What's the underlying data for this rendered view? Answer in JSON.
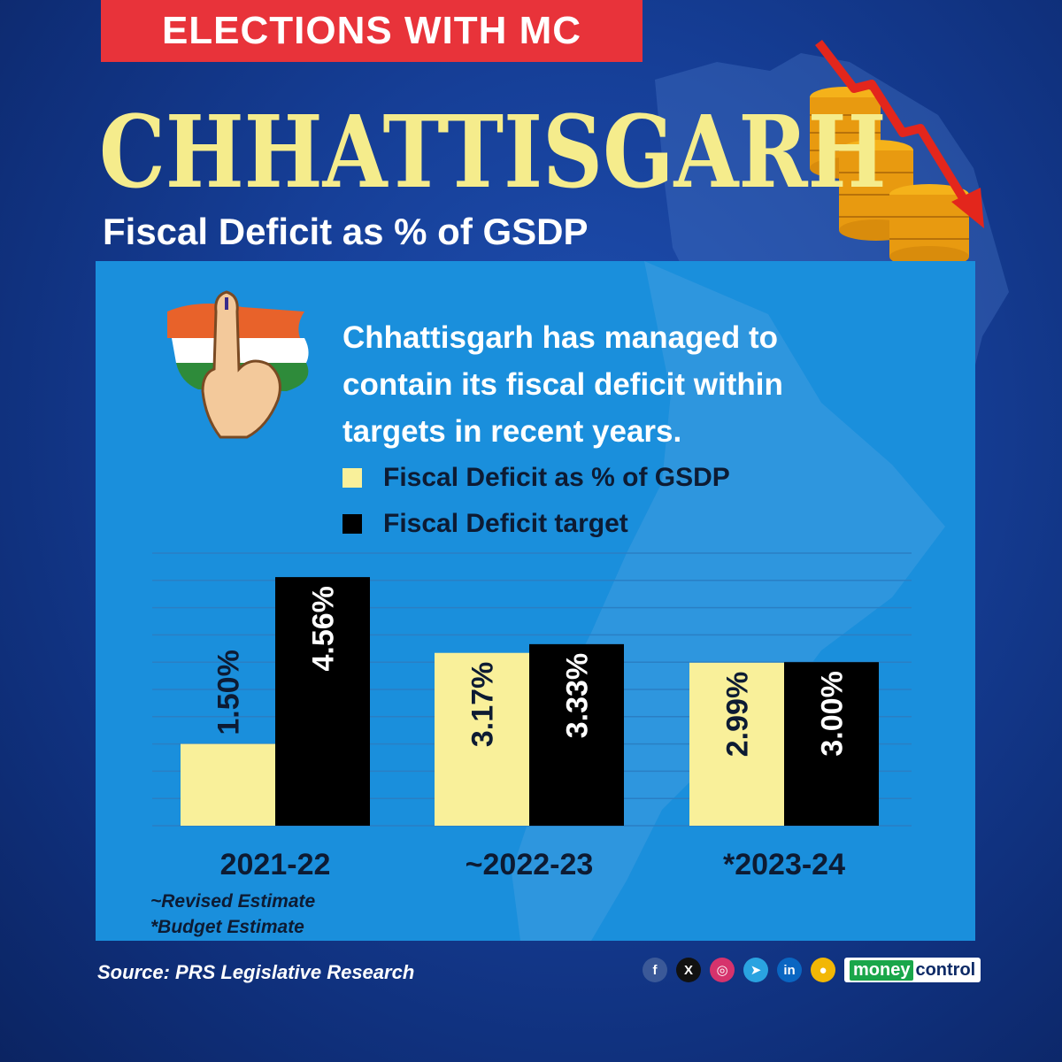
{
  "header": {
    "tag": "ELECTIONS WITH MC",
    "state": "CHHATTISGARH",
    "subtitle": "Fiscal Deficit as % of GSDP"
  },
  "note": "Chhattisgarh has managed to contain its fiscal deficit within targets in recent years.",
  "legend": [
    {
      "label": "Fiscal Deficit as % of GSDP",
      "color": "#f9f09a"
    },
    {
      "label": "Fiscal Deficit target",
      "color": "#000000"
    }
  ],
  "chart_data": {
    "type": "bar",
    "categories": [
      "2021-22",
      "~2022-23",
      "*2023-24"
    ],
    "series": [
      {
        "name": "Fiscal Deficit as % of GSDP",
        "values": [
          1.5,
          3.17,
          2.99
        ],
        "labels": [
          "1.50%",
          "3.17%",
          "2.99%"
        ],
        "color": "#f9f09a"
      },
      {
        "name": "Fiscal Deficit target",
        "values": [
          4.56,
          3.33,
          3.0
        ],
        "labels": [
          "4.56%",
          "3.33%",
          "3.00%"
        ],
        "color": "#000000"
      }
    ],
    "ylim": [
      0,
      5
    ],
    "grid": true,
    "legend_position": "top"
  },
  "footnotes": [
    "~Revised Estimate",
    "*Budget Estimate"
  ],
  "source": "Source: PRS Legislative Research",
  "socials": [
    {
      "icon": "facebook-icon",
      "glyph": "f",
      "color": "#3b5998"
    },
    {
      "icon": "x-icon",
      "glyph": "X",
      "color": "#111111"
    },
    {
      "icon": "instagram-icon",
      "glyph": "◎",
      "color": "#d6336c"
    },
    {
      "icon": "telegram-icon",
      "glyph": "➤",
      "color": "#2aa3e0"
    },
    {
      "icon": "linkedin-icon",
      "glyph": "in",
      "color": "#0a66c2"
    },
    {
      "icon": "koo-icon",
      "glyph": "●",
      "color": "#f2b705"
    }
  ],
  "brand": {
    "part1": "money",
    "part2": "control"
  }
}
